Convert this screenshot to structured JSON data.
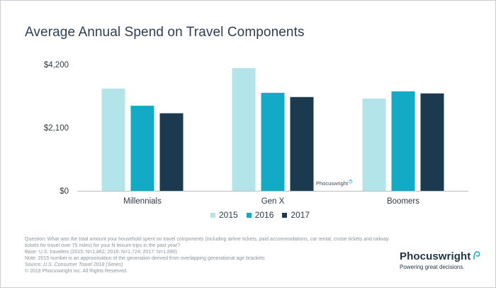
{
  "title": "Average Annual Spend on Travel Components",
  "chart_data": {
    "type": "bar",
    "title": "Average Annual Spend on Travel Components",
    "categories": [
      "Millennials",
      "Gen X",
      "Boomers"
    ],
    "series": [
      {
        "name": "2015",
        "color": "#b3e4ea",
        "values": [
          3400,
          4080,
          3070
        ]
      },
      {
        "name": "2016",
        "color": "#12aac5",
        "values": [
          2830,
          3260,
          3310
        ]
      },
      {
        "name": "2017",
        "color": "#1c3a4f",
        "values": [
          2580,
          3120,
          3240
        ]
      }
    ],
    "y_ticks": [
      "$0",
      "$2,100",
      "$4,200"
    ],
    "ylim": [
      0,
      4200
    ],
    "xlabel": "",
    "ylabel": "",
    "grid": false,
    "legend_placement": "bottom-center"
  },
  "notes": {
    "question": "Question: What was the total amount your household spent on travel components (including airline tickets, paid accommodations, car rental, cruise tickets and railway tickets for travel over 75 miles) for your N leisure trips in the past year?",
    "base": "Base: U.S. travelers  (2015: N=1,862; 2016: N=1,724; 2017: N=1,890)",
    "note": "Note: 2015 number is an approximation of the generation derived from overlapping generational age brackets",
    "source_prefix": "Source: ",
    "source_title": "U.S. Consumer Travel 2018 (Series)",
    "copyright": "© 2018 Phocuswright Inc. All Rights Reserved."
  },
  "watermark": "Phocuswright",
  "brand": {
    "name": "Phocuswright",
    "tagline": "Powering great decisions.",
    "hook_color": "#2cb5c9"
  }
}
